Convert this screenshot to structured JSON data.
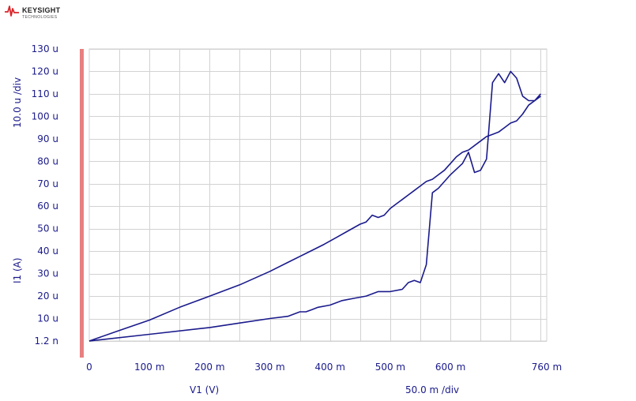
{
  "logo": {
    "brand": "KEYSIGHT",
    "sub": "TECHNOLOGIES"
  },
  "colors": {
    "trace": "#1a1a8c",
    "grid": "#d2d2d2",
    "axis_text": "#1a1a8c",
    "marker_bar": "#e88080",
    "logo_red": "#d9262b"
  },
  "chart_data": {
    "type": "line",
    "xlabel": "V1 (V)",
    "ylabel": "I1 (A)",
    "x_scale": "50.0 m /div",
    "y_scale": "10.0 u /div",
    "xlim": [
      0,
      0.76
    ],
    "ylim": [
      1.2e-09,
      0.00013
    ],
    "x_ticks": [
      0,
      0.1,
      0.2,
      0.3,
      0.4,
      0.5,
      0.6,
      0.76
    ],
    "x_tick_labels": [
      "0",
      "100 m",
      "200 m",
      "300 m",
      "400 m",
      "500 m",
      "600 m",
      "760 m"
    ],
    "y_ticks": [
      1.2e-09,
      1e-05,
      2e-05,
      3e-05,
      4e-05,
      5e-05,
      6e-05,
      7e-05,
      8e-05,
      9e-05,
      0.0001,
      0.00011,
      0.00012,
      0.00013
    ],
    "y_tick_labels": [
      "1.2 n",
      "10 u",
      "20 u",
      "30 u",
      "40 u",
      "50 u",
      "60 u",
      "70 u",
      "80 u",
      "90 u",
      "100 u",
      "110 u",
      "120 u",
      "130 u"
    ],
    "grid": true,
    "series": [
      {
        "x": [
          0,
          0.05,
          0.1,
          0.15,
          0.2,
          0.25,
          0.3,
          0.33,
          0.36,
          0.39,
          0.41,
          0.43,
          0.45,
          0.46,
          0.47,
          0.48,
          0.49,
          0.5,
          0.51,
          0.52,
          0.53,
          0.54,
          0.55,
          0.56,
          0.57,
          0.58,
          0.59,
          0.6,
          0.61,
          0.62,
          0.63,
          0.65,
          0.66,
          0.67,
          0.68,
          0.69,
          0.7,
          0.71,
          0.72,
          0.73,
          0.74,
          0.75
        ],
        "y": [
          1.2e-09,
          4.7e-06,
          9.3e-06,
          1.5e-05,
          2e-05,
          2.5e-05,
          3.1e-05,
          3.5e-05,
          3.9e-05,
          4.3e-05,
          4.6e-05,
          4.9e-05,
          5.2e-05,
          5.3e-05,
          5.6e-05,
          5.5e-05,
          5.6e-05,
          5.9e-05,
          6.1e-05,
          6.3e-05,
          6.5e-05,
          6.7e-05,
          6.9e-05,
          7.1e-05,
          7.2e-05,
          7.4e-05,
          7.6e-05,
          7.9e-05,
          8.2e-05,
          8.4e-05,
          8.5e-05,
          8.9e-05,
          9.1e-05,
          9.2e-05,
          9.3e-05,
          9.5e-05,
          9.7e-05,
          9.8e-05,
          0.000101,
          0.000105,
          0.000107,
          0.000109
        ]
      },
      {
        "x": [
          0,
          0.1,
          0.2,
          0.25,
          0.3,
          0.33,
          0.35,
          0.36,
          0.37,
          0.38,
          0.4,
          0.42,
          0.44,
          0.46,
          0.47,
          0.48,
          0.5,
          0.52,
          0.53,
          0.54,
          0.55,
          0.56,
          0.57,
          0.58,
          0.6,
          0.62,
          0.63,
          0.64,
          0.65,
          0.66,
          0.67,
          0.68,
          0.69,
          0.7,
          0.71,
          0.72,
          0.73,
          0.74,
          0.75
        ],
        "y": [
          1.2e-09,
          3e-06,
          6e-06,
          8e-06,
          1e-05,
          1.1e-05,
          1.3e-05,
          1.3e-05,
          1.4e-05,
          1.5e-05,
          1.6e-05,
          1.8e-05,
          1.9e-05,
          2e-05,
          2.1e-05,
          2.2e-05,
          2.2e-05,
          2.3e-05,
          2.6e-05,
          2.7e-05,
          2.6e-05,
          3.4e-05,
          6.6e-05,
          6.8e-05,
          7.4e-05,
          7.9e-05,
          8.4e-05,
          7.5e-05,
          7.6e-05,
          8.1e-05,
          0.000115,
          0.000119,
          0.000115,
          0.00012,
          0.000117,
          0.000109,
          0.000107,
          0.000107,
          0.00011
        ]
      }
    ]
  }
}
